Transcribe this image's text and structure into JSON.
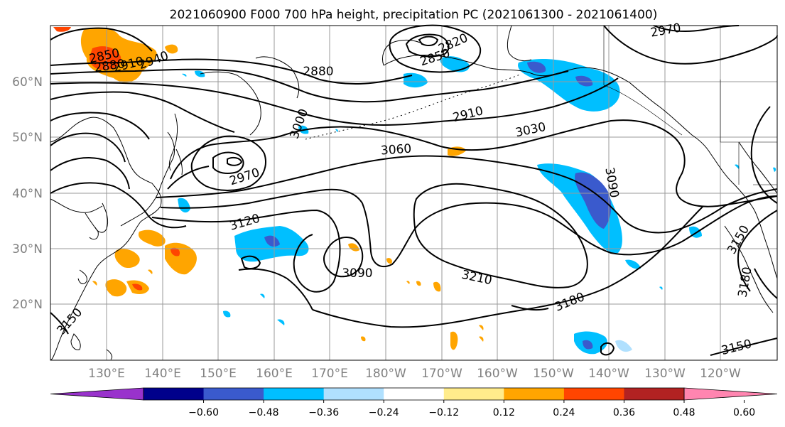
{
  "title": "2021060900 F000 700 hPa height, precipitation PC (2021061300 - 2021061400)",
  "map": {
    "lat_labels": [
      "60°N",
      "50°N",
      "40°N",
      "30°N",
      "20°N"
    ],
    "lon_labels": [
      "130°E",
      "140°E",
      "150°E",
      "160°E",
      "170°E",
      "180°W",
      "170°W",
      "160°W",
      "150°W",
      "140°W",
      "130°W",
      "120°W"
    ],
    "contour_labels": [
      "2850",
      "2880",
      "2910",
      "2940",
      "2880",
      "2850",
      "2820",
      "2910",
      "2970",
      "3030",
      "3000",
      "3060",
      "2970",
      "3120",
      "3090",
      "3210",
      "3180",
      "3090",
      "3150",
      "3180",
      "3150",
      "3150"
    ]
  },
  "colorbar": {
    "ticks": [
      "−0.60",
      "−0.48",
      "−0.36",
      "−0.24",
      "−0.12",
      "0.12",
      "0.24",
      "0.36",
      "0.48",
      "0.60"
    ],
    "colors": [
      "#9932cc",
      "#00008b",
      "#3a5acd",
      "#00bfff",
      "#b0e0fe",
      "#ffffff",
      "#ffec8b",
      "#ffa500",
      "#ff4500",
      "#b22222",
      "#ff85b0"
    ]
  }
}
